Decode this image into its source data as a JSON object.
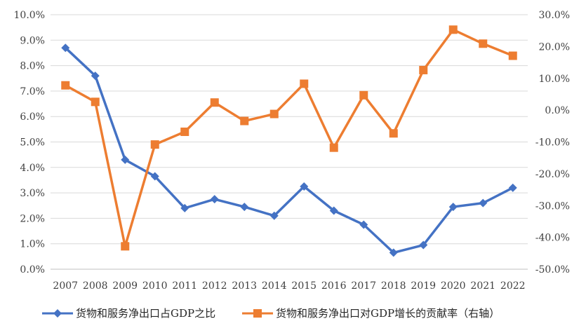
{
  "chart_data": {
    "type": "line",
    "categories": [
      "2007",
      "2008",
      "2009",
      "2010",
      "2011",
      "2012",
      "2013",
      "2014",
      "2015",
      "2016",
      "2017",
      "2018",
      "2019",
      "2020",
      "2021",
      "2022"
    ],
    "series": [
      {
        "name": "货物和服务净出口占GDP之比",
        "axis": "left",
        "color": "#4472C4",
        "marker": "diamond",
        "values": [
          8.7,
          7.6,
          4.3,
          3.65,
          2.4,
          2.75,
          2.45,
          2.1,
          3.25,
          2.3,
          1.75,
          0.65,
          0.95,
          2.45,
          2.6,
          3.2
        ]
      },
      {
        "name": "货物和服务净出口对GDP增长的贡献率（右轴）",
        "axis": "right",
        "color": "#ED7D31",
        "marker": "square",
        "values": [
          7.8,
          2.6,
          -42.8,
          -10.8,
          -6.8,
          2.4,
          -3.4,
          -1.2,
          8.3,
          -11.8,
          4.7,
          -7.3,
          12.6,
          25.3,
          20.9,
          17.1
        ]
      }
    ],
    "y_left": {
      "ylim": [
        0,
        10
      ],
      "ticks": [
        "0.0%",
        "1.0%",
        "2.0%",
        "3.0%",
        "4.0%",
        "5.0%",
        "6.0%",
        "7.0%",
        "8.0%",
        "9.0%",
        "10.0%"
      ]
    },
    "y_right": {
      "ylim": [
        -50,
        30
      ],
      "ticks": [
        "-50.0%",
        "-40.0%",
        "-30.0%",
        "-20.0%",
        "-10.0%",
        "0.0%",
        "10.0%",
        "20.0%",
        "30.0%"
      ]
    },
    "grid": true,
    "legend_position": "bottom"
  }
}
